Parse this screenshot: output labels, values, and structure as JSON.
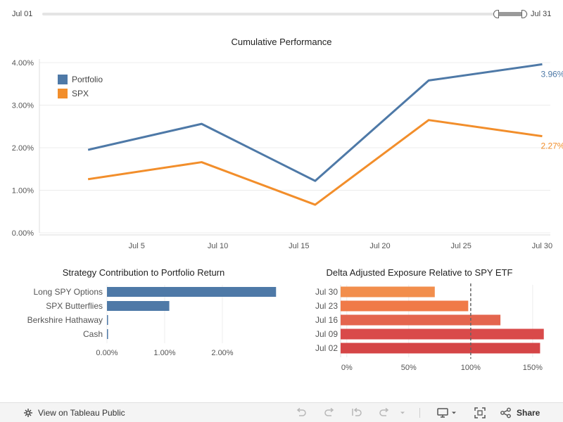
{
  "filter": {
    "start_label": "Jul 01",
    "end_label": "Jul 31"
  },
  "colors": {
    "portfolio": "#4e79a7",
    "spx": "#f28e2b",
    "exposure_scale": [
      "#e03b3b",
      "#f28e2b"
    ],
    "grid": "#ececec"
  },
  "chart_data": [
    {
      "type": "line",
      "title": "Cumulative Performance",
      "x": [
        "Jul 02",
        "Jul 09",
        "Jul 16",
        "Jul 23",
        "Jul 30"
      ],
      "x_days": [
        2,
        9,
        16,
        23,
        30
      ],
      "xlim": [
        -1,
        30.5
      ],
      "xticks": [
        5,
        10,
        15,
        20,
        25,
        30
      ],
      "xtick_labels": [
        "Jul 5",
        "Jul 10",
        "Jul 15",
        "Jul 20",
        "Jul 25",
        "Jul 30"
      ],
      "ylim": [
        0,
        4.0
      ],
      "yticks": [
        0,
        1,
        2,
        3,
        4
      ],
      "ytick_labels": [
        "0.00%",
        "1.00%",
        "2.00%",
        "3.00%",
        "4.00%"
      ],
      "series": [
        {
          "name": "Portfolio",
          "values": [
            1.95,
            2.56,
            1.22,
            3.58,
            3.96
          ],
          "end_label": "3.96%"
        },
        {
          "name": "SPX",
          "values": [
            1.26,
            1.66,
            0.66,
            2.65,
            2.27
          ],
          "end_label": "2.27%"
        }
      ],
      "legend": "top-left",
      "grid": true
    },
    {
      "type": "bar",
      "orientation": "horizontal",
      "title": "Strategy Contribution to Portfolio Return",
      "categories": [
        "Long SPY Options",
        "SPX Butterflies",
        "Berkshire Hathaway",
        "Cash"
      ],
      "values": [
        2.93,
        1.08,
        0.01,
        0.01
      ],
      "xlim": [
        0,
        3.0
      ],
      "xticks": [
        0,
        1,
        2
      ],
      "xtick_labels": [
        "0.00%",
        "1.00%",
        "2.00%"
      ],
      "grid": true
    },
    {
      "type": "bar",
      "orientation": "horizontal",
      "title": "Delta Adjusted Exposure Relative to SPY ETF",
      "categories": [
        "Jul 30",
        "Jul 23",
        "Jul 16",
        "Jul 09",
        "Jul 02"
      ],
      "values": [
        71,
        98,
        124,
        159,
        156
      ],
      "colors": [
        "#f28e4c",
        "#f07a48",
        "#e4654e",
        "#d94a4a",
        "#d54546"
      ],
      "xlim": [
        -5,
        162
      ],
      "xticks": [
        0,
        50,
        100,
        150
      ],
      "xtick_labels": [
        "0%",
        "50%",
        "100%",
        "150%"
      ],
      "reference_line": 100,
      "grid": true
    }
  ],
  "toolbar": {
    "view_label": "View on Tableau Public",
    "share_label": "Share"
  }
}
